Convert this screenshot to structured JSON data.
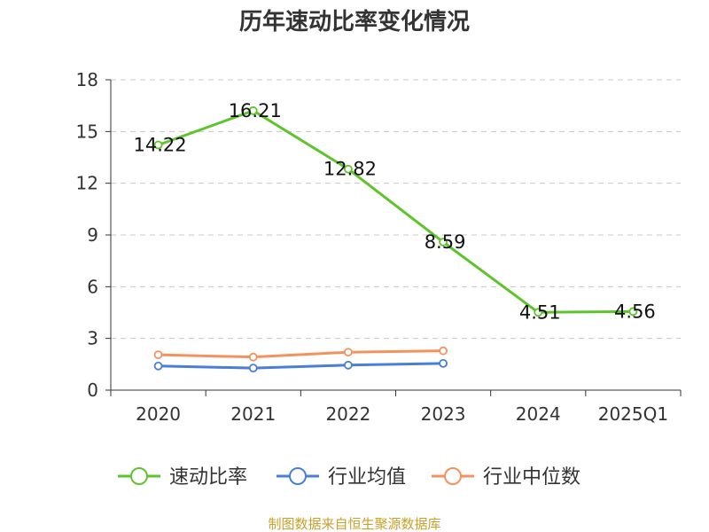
{
  "chart_data": {
    "type": "line",
    "title": "历年速动比率变化情况",
    "categories": [
      "2020",
      "2021",
      "2022",
      "2023",
      "2024",
      "2025Q1"
    ],
    "ylim": [
      0,
      18
    ],
    "yticks": [
      0,
      3,
      6,
      9,
      12,
      15,
      18
    ],
    "grid": true,
    "legend_position": "bottom",
    "series": [
      {
        "name": "速动比率",
        "color": "#5ec42b",
        "values": [
          14.22,
          16.21,
          12.82,
          8.59,
          4.51,
          4.56
        ],
        "labels": [
          "14.22",
          "16.21",
          "12.82",
          "8.59",
          "4.51",
          "4.56"
        ]
      },
      {
        "name": "行业均值",
        "color": "#4a7fd9",
        "values": [
          1.4,
          1.28,
          1.45,
          1.55,
          null,
          null
        ]
      },
      {
        "name": "行业中位数",
        "color": "#f4925e",
        "values": [
          2.05,
          1.92,
          2.2,
          2.28,
          null,
          null
        ]
      }
    ]
  },
  "footer": {
    "source": "制图数据来自恒生聚源数据库"
  }
}
